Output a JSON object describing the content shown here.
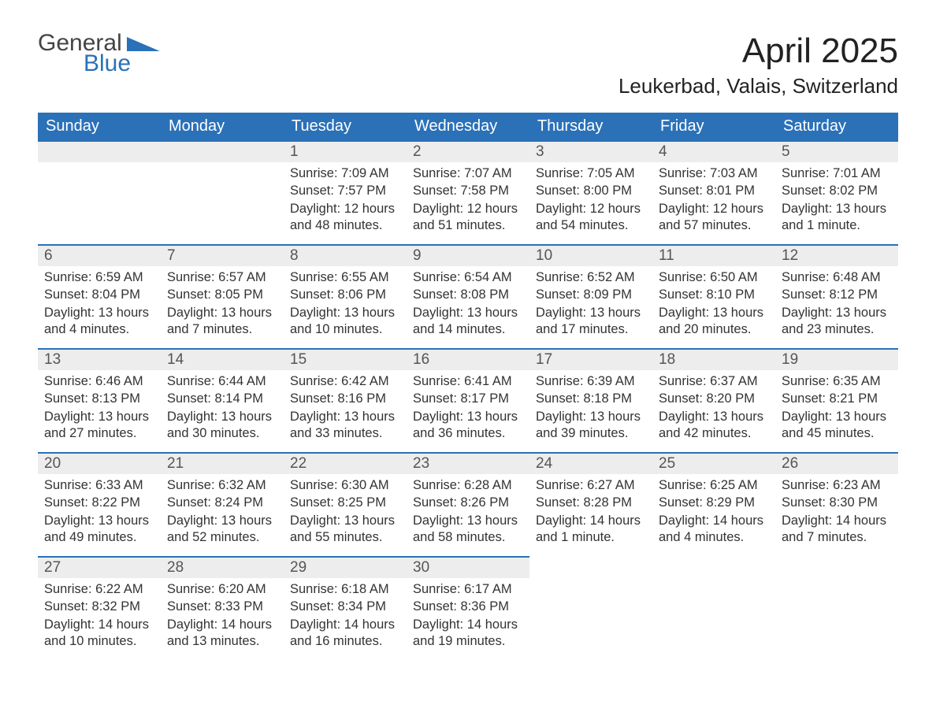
{
  "logo": {
    "word1": "General",
    "word2": "Blue",
    "color1": "#444444",
    "color2": "#2b71b8"
  },
  "title": "April 2025",
  "location": "Leukerbad, Valais, Switzerland",
  "colors": {
    "header_bg": "#2b71b8",
    "header_text": "#ffffff",
    "daybar_bg": "#ededed",
    "daybar_border": "#2b71b8",
    "body_text": "#333333",
    "daynum_text": "#555555",
    "page_bg": "#ffffff"
  },
  "weekdays": [
    "Sunday",
    "Monday",
    "Tuesday",
    "Wednesday",
    "Thursday",
    "Friday",
    "Saturday"
  ],
  "labels": {
    "sunrise": "Sunrise:",
    "sunset": "Sunset:",
    "daylight": "Daylight:"
  },
  "grid": [
    [
      null,
      null,
      {
        "num": "1",
        "sunrise": "7:09 AM",
        "sunset": "7:57 PM",
        "daylight": "12 hours and 48 minutes."
      },
      {
        "num": "2",
        "sunrise": "7:07 AM",
        "sunset": "7:58 PM",
        "daylight": "12 hours and 51 minutes."
      },
      {
        "num": "3",
        "sunrise": "7:05 AM",
        "sunset": "8:00 PM",
        "daylight": "12 hours and 54 minutes."
      },
      {
        "num": "4",
        "sunrise": "7:03 AM",
        "sunset": "8:01 PM",
        "daylight": "12 hours and 57 minutes."
      },
      {
        "num": "5",
        "sunrise": "7:01 AM",
        "sunset": "8:02 PM",
        "daylight": "13 hours and 1 minute."
      }
    ],
    [
      {
        "num": "6",
        "sunrise": "6:59 AM",
        "sunset": "8:04 PM",
        "daylight": "13 hours and 4 minutes."
      },
      {
        "num": "7",
        "sunrise": "6:57 AM",
        "sunset": "8:05 PM",
        "daylight": "13 hours and 7 minutes."
      },
      {
        "num": "8",
        "sunrise": "6:55 AM",
        "sunset": "8:06 PM",
        "daylight": "13 hours and 10 minutes."
      },
      {
        "num": "9",
        "sunrise": "6:54 AM",
        "sunset": "8:08 PM",
        "daylight": "13 hours and 14 minutes."
      },
      {
        "num": "10",
        "sunrise": "6:52 AM",
        "sunset": "8:09 PM",
        "daylight": "13 hours and 17 minutes."
      },
      {
        "num": "11",
        "sunrise": "6:50 AM",
        "sunset": "8:10 PM",
        "daylight": "13 hours and 20 minutes."
      },
      {
        "num": "12",
        "sunrise": "6:48 AM",
        "sunset": "8:12 PM",
        "daylight": "13 hours and 23 minutes."
      }
    ],
    [
      {
        "num": "13",
        "sunrise": "6:46 AM",
        "sunset": "8:13 PM",
        "daylight": "13 hours and 27 minutes."
      },
      {
        "num": "14",
        "sunrise": "6:44 AM",
        "sunset": "8:14 PM",
        "daylight": "13 hours and 30 minutes."
      },
      {
        "num": "15",
        "sunrise": "6:42 AM",
        "sunset": "8:16 PM",
        "daylight": "13 hours and 33 minutes."
      },
      {
        "num": "16",
        "sunrise": "6:41 AM",
        "sunset": "8:17 PM",
        "daylight": "13 hours and 36 minutes."
      },
      {
        "num": "17",
        "sunrise": "6:39 AM",
        "sunset": "8:18 PM",
        "daylight": "13 hours and 39 minutes."
      },
      {
        "num": "18",
        "sunrise": "6:37 AM",
        "sunset": "8:20 PM",
        "daylight": "13 hours and 42 minutes."
      },
      {
        "num": "19",
        "sunrise": "6:35 AM",
        "sunset": "8:21 PM",
        "daylight": "13 hours and 45 minutes."
      }
    ],
    [
      {
        "num": "20",
        "sunrise": "6:33 AM",
        "sunset": "8:22 PM",
        "daylight": "13 hours and 49 minutes."
      },
      {
        "num": "21",
        "sunrise": "6:32 AM",
        "sunset": "8:24 PM",
        "daylight": "13 hours and 52 minutes."
      },
      {
        "num": "22",
        "sunrise": "6:30 AM",
        "sunset": "8:25 PM",
        "daylight": "13 hours and 55 minutes."
      },
      {
        "num": "23",
        "sunrise": "6:28 AM",
        "sunset": "8:26 PM",
        "daylight": "13 hours and 58 minutes."
      },
      {
        "num": "24",
        "sunrise": "6:27 AM",
        "sunset": "8:28 PM",
        "daylight": "14 hours and 1 minute."
      },
      {
        "num": "25",
        "sunrise": "6:25 AM",
        "sunset": "8:29 PM",
        "daylight": "14 hours and 4 minutes."
      },
      {
        "num": "26",
        "sunrise": "6:23 AM",
        "sunset": "8:30 PM",
        "daylight": "14 hours and 7 minutes."
      }
    ],
    [
      {
        "num": "27",
        "sunrise": "6:22 AM",
        "sunset": "8:32 PM",
        "daylight": "14 hours and 10 minutes."
      },
      {
        "num": "28",
        "sunrise": "6:20 AM",
        "sunset": "8:33 PM",
        "daylight": "14 hours and 13 minutes."
      },
      {
        "num": "29",
        "sunrise": "6:18 AM",
        "sunset": "8:34 PM",
        "daylight": "14 hours and 16 minutes."
      },
      {
        "num": "30",
        "sunrise": "6:17 AM",
        "sunset": "8:36 PM",
        "daylight": "14 hours and 19 minutes."
      },
      null,
      null,
      null
    ]
  ]
}
